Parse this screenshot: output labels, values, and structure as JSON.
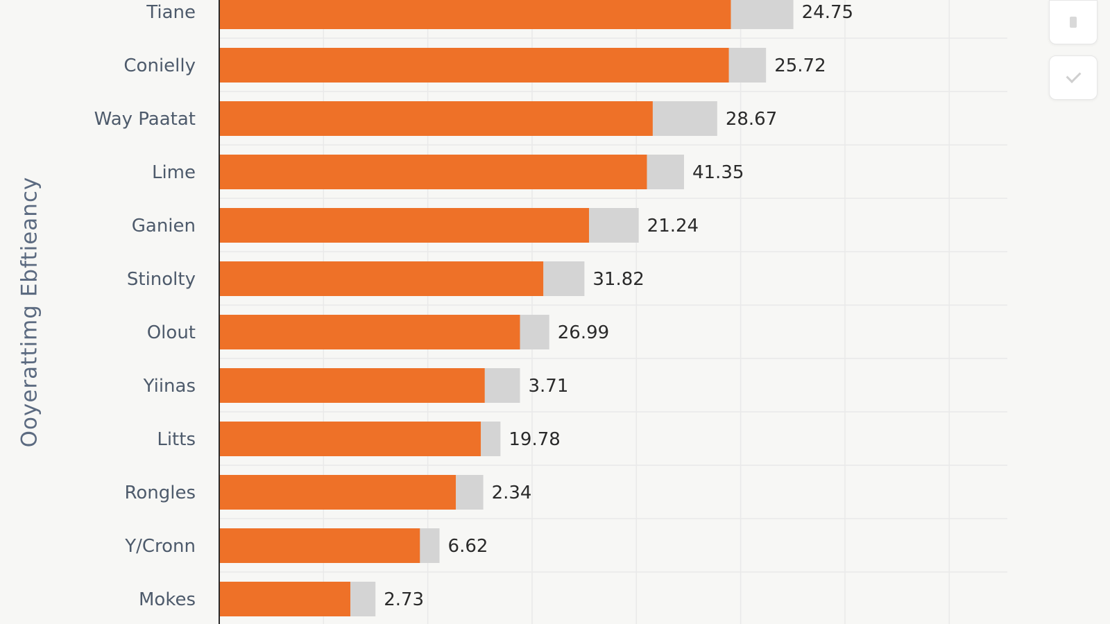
{
  "chart_data": {
    "type": "bar",
    "orientation": "horizontal",
    "stacked": true,
    "ylabel": "Ooyerattimg Ebftieancy",
    "xlabel": "",
    "title": "",
    "grid": true,
    "legend": "none",
    "colors": {
      "primary": "#ee7128",
      "secondary": "#d4d4d4",
      "axis": "#2a2a2a",
      "grid": "#e9e9e9"
    },
    "categories": [
      "Tiane",
      "Conielly",
      "Way Paatat",
      "Lime",
      "Ganien",
      "Stinolty",
      "Olout",
      "Yiinas",
      "Litts",
      "Rongles",
      "Y/Cronn",
      "Mokes"
    ],
    "series": [
      {
        "values": [
          13.1,
          13.05,
          11.1,
          10.95,
          9.47,
          8.3,
          7.7,
          6.8,
          6.7,
          6.06,
          5.14,
          3.36
        ]
      },
      {
        "values": [
          1.6,
          0.95,
          1.65,
          0.95,
          1.27,
          1.05,
          0.75,
          0.9,
          0.5,
          0.7,
          0.5,
          0.64
        ]
      }
    ],
    "value_labels": [
      "24.75",
      "25.72",
      "28.67",
      "41.35",
      "21.24",
      "31.82",
      "26.99",
      "3.71",
      "19.78",
      "2.34",
      "6.62",
      "2.73"
    ],
    "xlim": [
      0,
      22
    ]
  },
  "controls": {
    "top_icon": "document-icon",
    "check_icon": "check-icon"
  }
}
